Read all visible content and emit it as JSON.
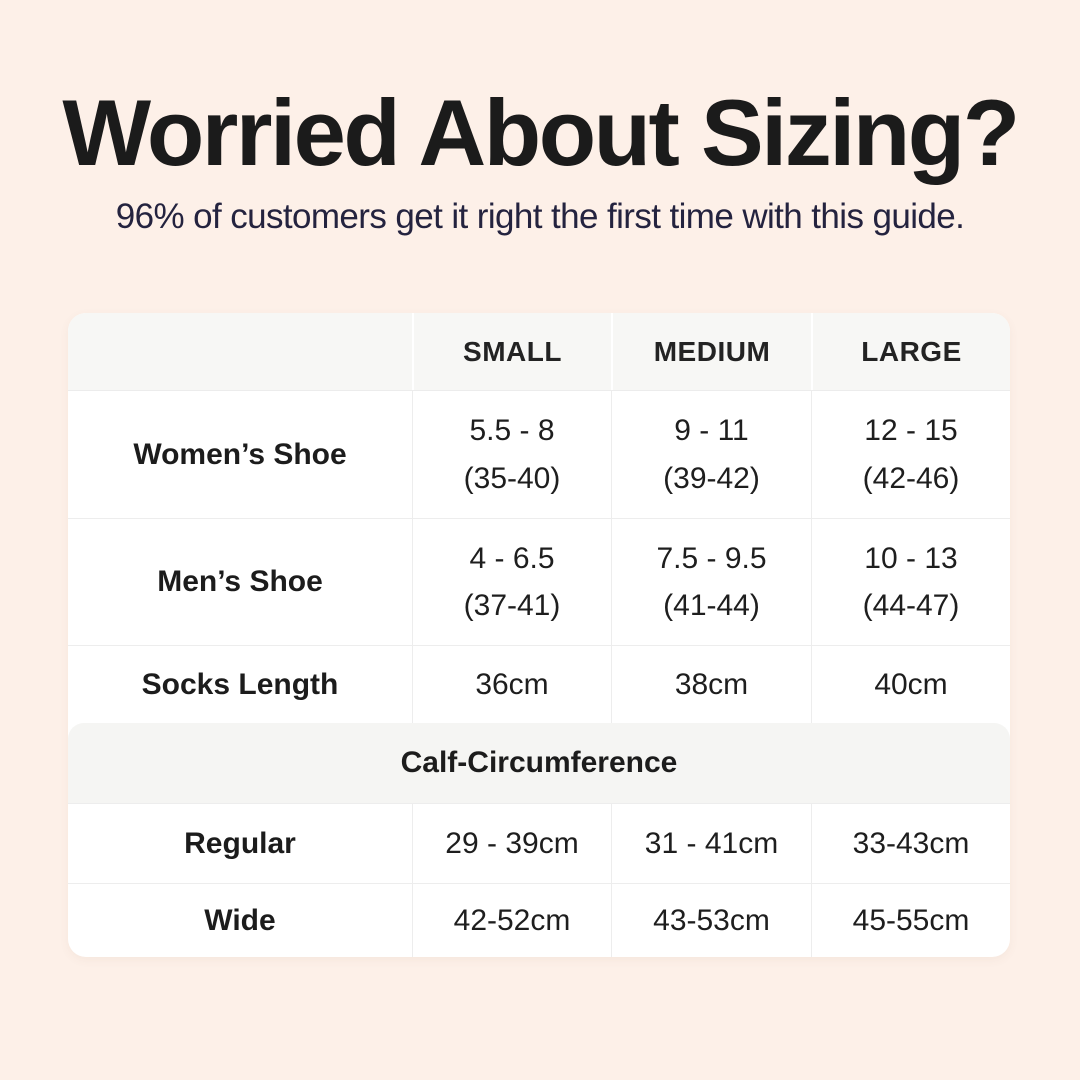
{
  "header": {
    "title": "Worried About Sizing?",
    "subtitle": "96% of customers get it right the first time with this guide."
  },
  "colors": {
    "page_background": "#fdf0e8",
    "title_text": "#1b1b1b",
    "subtitle_text": "#24233f",
    "card_background": "#ffffff",
    "header_row_background": "#f7f7f5",
    "section_band_background": "#f5f5f3",
    "divider": "#ededed",
    "body_text": "#1e1e1e"
  },
  "table": {
    "columns": [
      "SMALL",
      "MEDIUM",
      "LARGE"
    ],
    "rows": [
      {
        "label": "Women’s Shoe",
        "cells": [
          {
            "main": "5.5 - 8",
            "sub": "(35-40)"
          },
          {
            "main": "9 - 11",
            "sub": "(39-42)"
          },
          {
            "main": "12 - 15",
            "sub": "(42-46)"
          }
        ]
      },
      {
        "label": "Men’s Shoe",
        "cells": [
          {
            "main": "4 - 6.5",
            "sub": "(37-41)"
          },
          {
            "main": "7.5 - 9.5",
            "sub": "(41-44)"
          },
          {
            "main": "10 - 13",
            "sub": "(44-47)"
          }
        ]
      },
      {
        "label": "Socks Length",
        "cells": [
          {
            "main": "36cm"
          },
          {
            "main": "38cm"
          },
          {
            "main": "40cm"
          }
        ]
      }
    ],
    "section_header": "Calf-Circumference",
    "calf_rows": [
      {
        "label": "Regular",
        "cells": [
          {
            "main": "29 - 39cm"
          },
          {
            "main": "31 - 41cm"
          },
          {
            "main": "33-43cm"
          }
        ]
      },
      {
        "label": "Wide",
        "cells": [
          {
            "main": "42-52cm"
          },
          {
            "main": "43-53cm"
          },
          {
            "main": "45-55cm"
          }
        ]
      }
    ]
  }
}
